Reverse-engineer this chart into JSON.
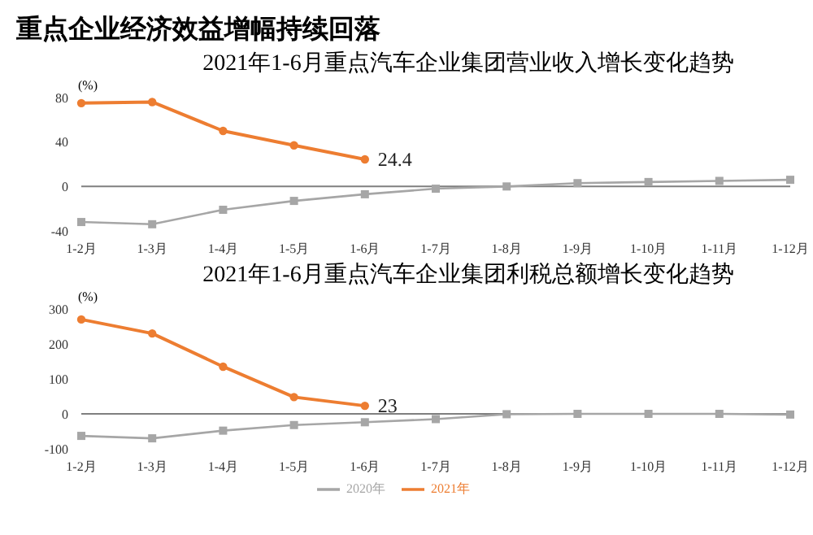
{
  "chart_data": [
    {
      "type": "line",
      "title": "重点企业经济效益增幅持续回落",
      "subtitle": "2021年1-6月重点汽车企业集团营业收入增长变化趋势",
      "ylabel": "(%)",
      "categories": [
        "1-2月",
        "1-3月",
        "1-4月",
        "1-5月",
        "1-6月",
        "1-7月",
        "1-8月",
        "1-9月",
        "1-10月",
        "1-11月",
        "1-12月"
      ],
      "series": [
        {
          "color": "#a6a6a6",
          "marker": "square",
          "values": [
            -32,
            -34,
            -21,
            -13,
            -7,
            -2,
            0,
            3,
            4,
            5,
            6
          ]
        },
        {
          "color": "#ed7d31",
          "marker": "circle",
          "values": [
            75,
            76,
            50,
            37,
            24.4,
            null,
            null,
            null,
            null,
            null,
            null
          ],
          "value_labels": [
            null,
            null,
            null,
            null,
            "24.4",
            null,
            null,
            null,
            null,
            null,
            null
          ]
        }
      ],
      "ylim": [
        -40,
        80
      ],
      "yticks": [
        -40,
        0,
        40,
        80
      ],
      "ref_lines": [
        {
          "axis": "y",
          "value": 0,
          "color": "#7f7f7f"
        }
      ],
      "grid": false,
      "legend": false,
      "line_style": "solid"
    },
    {
      "type": "line",
      "title": "2021年1-6月重点汽车企业集团利税总额增长变化趋势",
      "ylabel": "(%)",
      "categories": [
        "1-2月",
        "1-3月",
        "1-4月",
        "1-5月",
        "1-6月",
        "1-7月",
        "1-8月",
        "1-9月",
        "1-10月",
        "1-11月",
        "1-12月"
      ],
      "series": [
        {
          "name": "2020年",
          "color": "#a6a6a6",
          "marker": "square",
          "values": [
            -63,
            -70,
            -48,
            -32,
            -24,
            -15,
            -1,
            0,
            0,
            0,
            -2
          ]
        },
        {
          "name": "2021年",
          "color": "#ed7d31",
          "marker": "circle",
          "values": [
            270,
            230,
            135,
            48,
            23,
            null,
            null,
            null,
            null,
            null,
            null
          ],
          "value_labels": [
            null,
            null,
            null,
            null,
            "23",
            null,
            null,
            null,
            null,
            null,
            null
          ]
        }
      ],
      "ylim": [
        -100,
        300
      ],
      "yticks": [
        -100,
        0,
        100,
        200,
        300
      ],
      "ref_lines": [
        {
          "axis": "y",
          "value": 0,
          "color": "#7f7f7f"
        }
      ],
      "grid": false,
      "legend": "bottom",
      "line_style": "solid"
    }
  ]
}
